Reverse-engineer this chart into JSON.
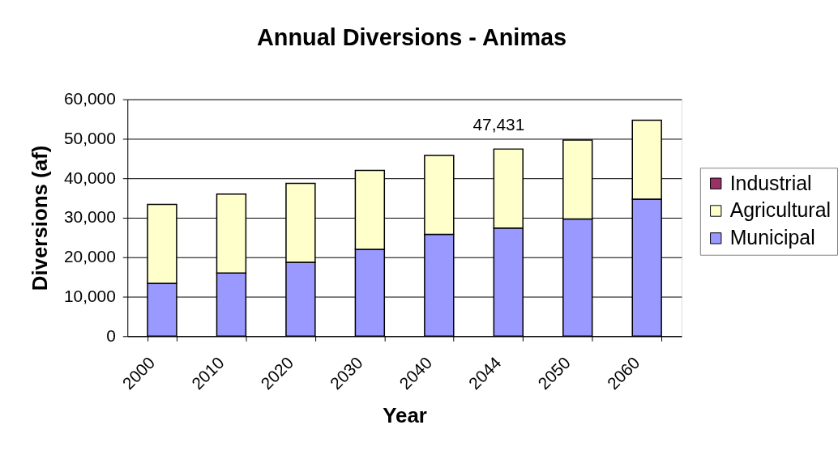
{
  "chart_data": {
    "type": "bar",
    "title": "Annual Diversions - Animas",
    "xlabel": "Year",
    "ylabel": "Diversions (af)",
    "categories": [
      "2000",
      "2010",
      "2020",
      "2030",
      "2040",
      "2044",
      "2050",
      "2060"
    ],
    "stacked": true,
    "series": [
      {
        "name": "Municipal",
        "color": "#9999ff",
        "values": [
          13400,
          16000,
          18700,
          22000,
          25800,
          27400,
          29700,
          34700
        ]
      },
      {
        "name": "Agricultural",
        "color": "#ffffcc",
        "values": [
          20000,
          20000,
          20000,
          20000,
          20000,
          20000,
          20000,
          20000
        ]
      },
      {
        "name": "Industrial",
        "color": "#993366",
        "values": [
          null,
          null,
          null,
          null,
          null,
          null,
          null,
          null
        ]
      }
    ],
    "ylim": [
      0,
      60000
    ],
    "yticks": [
      0,
      {
        "value": 10000,
        "label": "10,000"
      },
      {
        "value": 20000,
        "label": "20,000"
      },
      {
        "value": 30000,
        "label": "30,000"
      },
      {
        "value": 40000,
        "label": "40,000"
      },
      {
        "value": 50000,
        "label": "50,000"
      },
      {
        "value": 60000,
        "label": "60,000"
      }
    ],
    "annotations": [
      {
        "text": "47,431",
        "x": "2044",
        "y": 47431
      }
    ],
    "grid": "y",
    "legend": "right"
  }
}
